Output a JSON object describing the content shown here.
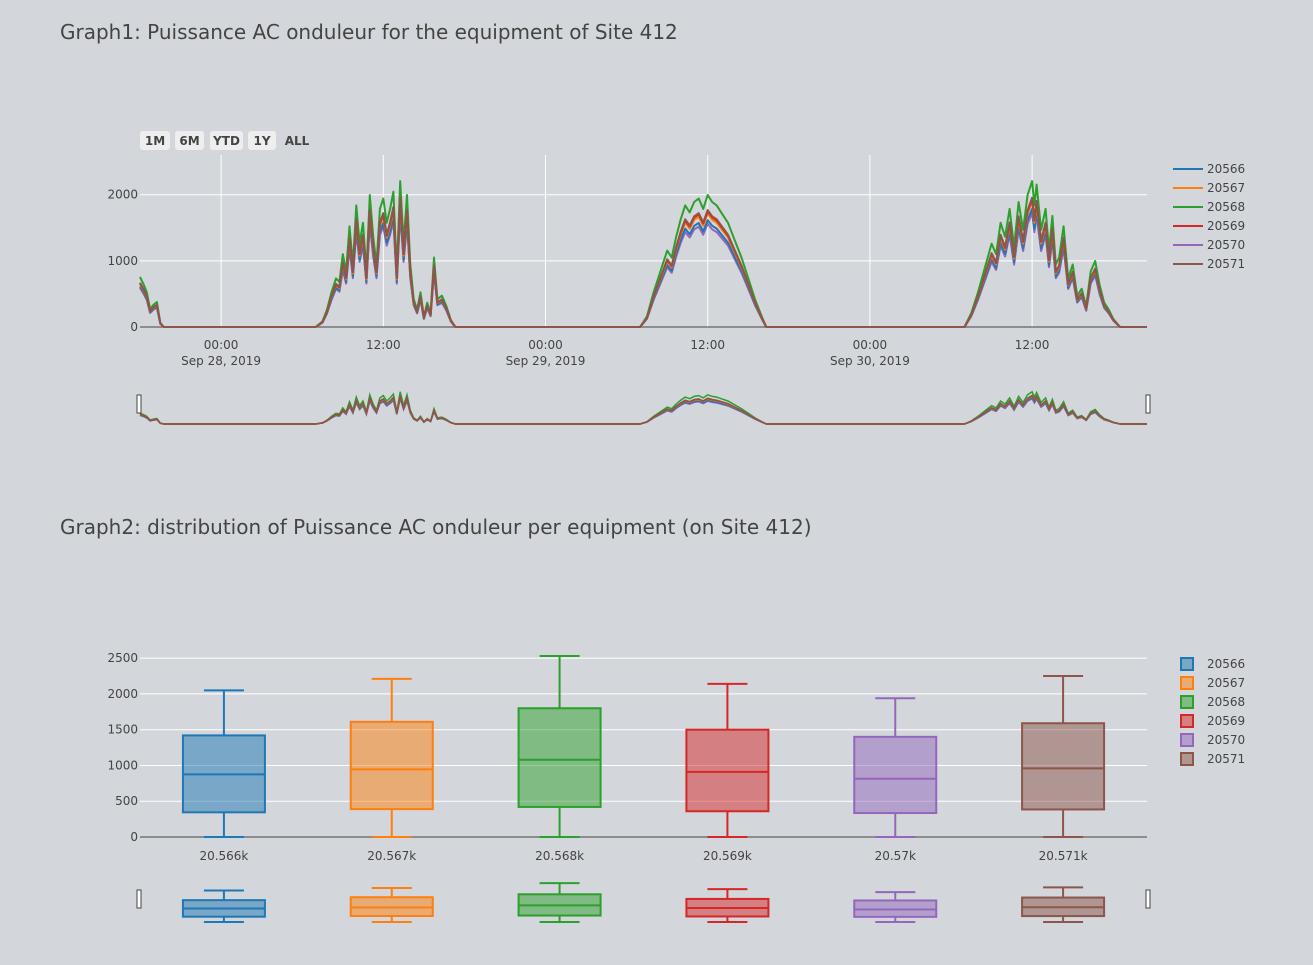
{
  "graph1": {
    "title": "Graph1: Puissance AC onduleur for the equipment of Site 412",
    "range_buttons": [
      "1M",
      "6M",
      "YTD",
      "1Y",
      "ALL"
    ]
  },
  "graph2": {
    "title": "Graph2: distribution of Puissance AC onduleur per equipment (on Site 412)"
  },
  "colors": [
    "#1f77b4",
    "#ff7f0e",
    "#2ca02c",
    "#d62728",
    "#9467bd",
    "#8c564b"
  ],
  "chart_data": [
    {
      "type": "line",
      "title": "Graph1: Puissance AC onduleur for the equipment of Site 412",
      "x_range": [
        "2019-09-27 18:00",
        "2019-09-30 20:30"
      ],
      "ylim": [
        0,
        2600
      ],
      "y_ticks": [
        0,
        1000,
        2000
      ],
      "x_ticks": [
        {
          "t": "2019-09-28 00:00",
          "label": "00:00",
          "sub": "Sep 28, 2019"
        },
        {
          "t": "2019-09-28 12:00",
          "label": "12:00",
          "sub": ""
        },
        {
          "t": "2019-09-29 00:00",
          "label": "00:00",
          "sub": "Sep 29, 2019"
        },
        {
          "t": "2019-09-29 12:00",
          "label": "12:00",
          "sub": ""
        },
        {
          "t": "2019-09-30 00:00",
          "label": "00:00",
          "sub": "Sep 30, 2019"
        },
        {
          "t": "2019-09-30 12:00",
          "label": "12:00",
          "sub": ""
        }
      ],
      "series_names": [
        "20566",
        "20567",
        "20568",
        "20569",
        "20570",
        "20571"
      ],
      "series_scale": [
        0.85,
        0.9,
        1.05,
        0.92,
        0.82,
        0.93
      ],
      "base_profile": [
        [
          "2019-09-27 18:00",
          720
        ],
        [
          "2019-09-27 18:15",
          620
        ],
        [
          "2019-09-27 18:30",
          500
        ],
        [
          "2019-09-27 18:45",
          260
        ],
        [
          "2019-09-27 19:00",
          320
        ],
        [
          "2019-09-27 19:15",
          360
        ],
        [
          "2019-09-27 19:30",
          60
        ],
        [
          "2019-09-27 19:45",
          0
        ],
        [
          "2019-09-28 07:00",
          0
        ],
        [
          "2019-09-28 07:30",
          80
        ],
        [
          "2019-09-28 07:50",
          250
        ],
        [
          "2019-09-28 08:10",
          500
        ],
        [
          "2019-09-28 08:30",
          700
        ],
        [
          "2019-09-28 08:45",
          650
        ],
        [
          "2019-09-28 09:00",
          1050
        ],
        [
          "2019-09-28 09:15",
          800
        ],
        [
          "2019-09-28 09:30",
          1450
        ],
        [
          "2019-09-28 09:45",
          900
        ],
        [
          "2019-09-28 10:00",
          1750
        ],
        [
          "2019-09-28 10:15",
          1200
        ],
        [
          "2019-09-28 10:30",
          1500
        ],
        [
          "2019-09-28 10:45",
          800
        ],
        [
          "2019-09-28 11:00",
          1900
        ],
        [
          "2019-09-28 11:15",
          1300
        ],
        [
          "2019-09-28 11:30",
          900
        ],
        [
          "2019-09-28 11:45",
          1700
        ],
        [
          "2019-09-28 12:00",
          1850
        ],
        [
          "2019-09-28 12:15",
          1500
        ],
        [
          "2019-09-28 12:30",
          1700
        ],
        [
          "2019-09-28 12:45",
          1950
        ],
        [
          "2019-09-28 13:00",
          800
        ],
        [
          "2019-09-28 13:15",
          2100
        ],
        [
          "2019-09-28 13:30",
          1200
        ],
        [
          "2019-09-28 13:45",
          1900
        ],
        [
          "2019-09-28 14:00",
          900
        ],
        [
          "2019-09-28 14:15",
          400
        ],
        [
          "2019-09-28 14:30",
          250
        ],
        [
          "2019-09-28 14:45",
          500
        ],
        [
          "2019-09-28 15:00",
          150
        ],
        [
          "2019-09-28 15:15",
          350
        ],
        [
          "2019-09-28 15:30",
          200
        ],
        [
          "2019-09-28 15:45",
          1000
        ],
        [
          "2019-09-28 16:00",
          400
        ],
        [
          "2019-09-28 16:20",
          450
        ],
        [
          "2019-09-28 16:40",
          300
        ],
        [
          "2019-09-28 17:00",
          100
        ],
        [
          "2019-09-28 17:20",
          0
        ],
        [
          "2019-09-29 07:00",
          0
        ],
        [
          "2019-09-29 07:30",
          150
        ],
        [
          "2019-09-29 08:00",
          500
        ],
        [
          "2019-09-29 08:30",
          800
        ],
        [
          "2019-09-29 09:00",
          1100
        ],
        [
          "2019-09-29 09:20",
          1000
        ],
        [
          "2019-09-29 09:40",
          1300
        ],
        [
          "2019-09-29 10:00",
          1550
        ],
        [
          "2019-09-29 10:20",
          1750
        ],
        [
          "2019-09-29 10:40",
          1650
        ],
        [
          "2019-09-29 11:00",
          1800
        ],
        [
          "2019-09-29 11:20",
          1850
        ],
        [
          "2019-09-29 11:40",
          1700
        ],
        [
          "2019-09-29 12:00",
          1900
        ],
        [
          "2019-09-29 12:20",
          1800
        ],
        [
          "2019-09-29 12:40",
          1750
        ],
        [
          "2019-09-29 13:00",
          1650
        ],
        [
          "2019-09-29 13:30",
          1500
        ],
        [
          "2019-09-29 14:00",
          1250
        ],
        [
          "2019-09-29 14:30",
          1000
        ],
        [
          "2019-09-29 15:00",
          700
        ],
        [
          "2019-09-29 15:30",
          400
        ],
        [
          "2019-09-29 16:00",
          150
        ],
        [
          "2019-09-29 16:20",
          0
        ],
        [
          "2019-09-30 07:00",
          0
        ],
        [
          "2019-09-30 07:30",
          200
        ],
        [
          "2019-09-30 08:00",
          500
        ],
        [
          "2019-09-30 08:30",
          850
        ],
        [
          "2019-09-30 09:00",
          1200
        ],
        [
          "2019-09-30 09:20",
          1050
        ],
        [
          "2019-09-30 09:40",
          1500
        ],
        [
          "2019-09-30 10:00",
          1300
        ],
        [
          "2019-09-30 10:20",
          1700
        ],
        [
          "2019-09-30 10:40",
          1150
        ],
        [
          "2019-09-30 11:00",
          1800
        ],
        [
          "2019-09-30 11:20",
          1400
        ],
        [
          "2019-09-30 11:40",
          1900
        ],
        [
          "2019-09-30 12:00",
          2100
        ],
        [
          "2019-09-30 12:10",
          1750
        ],
        [
          "2019-09-30 12:20",
          2050
        ],
        [
          "2019-09-30 12:40",
          1400
        ],
        [
          "2019-09-30 13:00",
          1700
        ],
        [
          "2019-09-30 13:15",
          1100
        ],
        [
          "2019-09-30 13:30",
          1600
        ],
        [
          "2019-09-30 13:45",
          900
        ],
        [
          "2019-09-30 14:00",
          1000
        ],
        [
          "2019-09-30 14:20",
          1450
        ],
        [
          "2019-09-30 14:40",
          700
        ],
        [
          "2019-09-30 15:00",
          900
        ],
        [
          "2019-09-30 15:20",
          450
        ],
        [
          "2019-09-30 15:40",
          550
        ],
        [
          "2019-09-30 16:00",
          300
        ],
        [
          "2019-09-30 16:20",
          800
        ],
        [
          "2019-09-30 16:40",
          950
        ],
        [
          "2019-09-30 17:00",
          600
        ],
        [
          "2019-09-30 17:20",
          350
        ],
        [
          "2019-09-30 17:40",
          250
        ],
        [
          "2019-09-30 18:00",
          120
        ],
        [
          "2019-09-30 18:30",
          0
        ],
        [
          "2019-09-30 20:30",
          0
        ]
      ]
    },
    {
      "type": "box",
      "title": "Graph2: distribution of Puissance AC onduleur per equipment (on Site 412)",
      "ylim": [
        0,
        2600
      ],
      "y_ticks": [
        0,
        500,
        1000,
        1500,
        2000,
        2500
      ],
      "categories": [
        "20.566k",
        "20.567k",
        "20.568k",
        "20.569k",
        "20.57k",
        "20.571k"
      ],
      "series": [
        {
          "name": "20566",
          "min": 0,
          "q1": 345,
          "median": 875,
          "q3": 1420,
          "max": 2050
        },
        {
          "name": "20567",
          "min": 0,
          "q1": 390,
          "median": 945,
          "q3": 1610,
          "max": 2210
        },
        {
          "name": "20568",
          "min": 0,
          "q1": 420,
          "median": 1080,
          "q3": 1800,
          "max": 2530
        },
        {
          "name": "20569",
          "min": 0,
          "q1": 360,
          "median": 910,
          "q3": 1500,
          "max": 2140
        },
        {
          "name": "20570",
          "min": 0,
          "q1": 335,
          "median": 815,
          "q3": 1400,
          "max": 1940
        },
        {
          "name": "20571",
          "min": 0,
          "q1": 385,
          "median": 960,
          "q3": 1590,
          "max": 2250
        }
      ]
    }
  ]
}
